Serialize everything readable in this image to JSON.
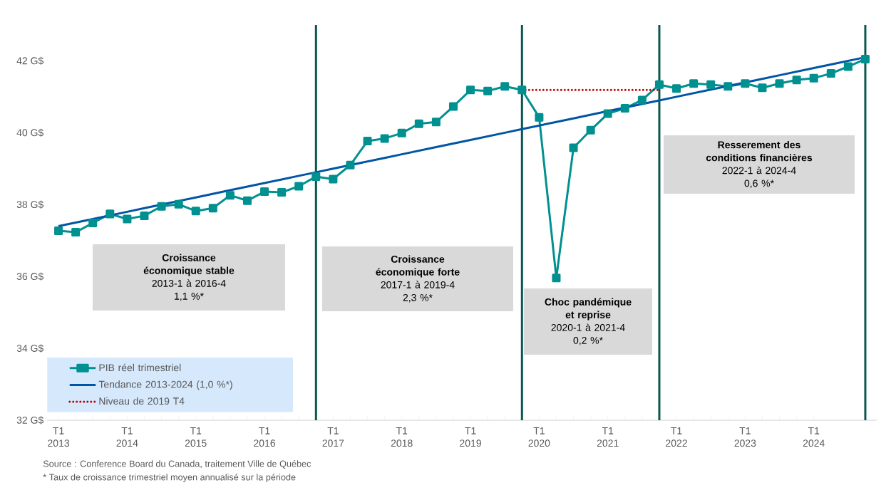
{
  "chart_data": {
    "type": "line",
    "x": [
      "2013-01",
      "2013-04",
      "2013-07",
      "2013-10",
      "2014-01",
      "2014-04",
      "2014-07",
      "2014-10",
      "2015-01",
      "2015-04",
      "2015-07",
      "2015-10",
      "2016-01",
      "2016-04",
      "2016-07",
      "2016-10",
      "2017-01",
      "2017-04",
      "2017-07",
      "2017-10",
      "2018-01",
      "2018-04",
      "2018-07",
      "2018-10",
      "2019-01",
      "2019-04",
      "2019-07",
      "2019-10",
      "2020-01",
      "2020-04",
      "2020-07",
      "2020-10",
      "2021-01",
      "2021-04",
      "2021-07",
      "2021-10",
      "2022-01",
      "2022-04",
      "2022-07",
      "2022-10",
      "2023-01",
      "2023-04",
      "2023-07",
      "2023-10",
      "2024-01",
      "2024-04",
      "2024-07",
      "2024-10"
    ],
    "series": [
      {
        "name": "PIB réel trimestriel",
        "color": "#009090",
        "marker": "square",
        "values": [
          37.27,
          37.23,
          37.49,
          37.74,
          37.6,
          37.69,
          37.95,
          38.01,
          37.82,
          37.9,
          38.26,
          38.11,
          38.36,
          38.34,
          38.51,
          38.78,
          38.71,
          39.1,
          39.77,
          39.84,
          39.99,
          40.25,
          40.3,
          40.73,
          41.19,
          41.16,
          41.29,
          41.19,
          40.43,
          35.96,
          39.58,
          40.07,
          40.53,
          40.68,
          40.91,
          41.34,
          41.23,
          41.37,
          41.34,
          41.29,
          41.37,
          41.25,
          41.37,
          41.47,
          41.52,
          41.65,
          41.84,
          42.05
        ]
      },
      {
        "name": "Tendance 2013-2024 (1,0 %*)",
        "color": "#0055a5",
        "values": [
          37.4,
          37.5,
          37.6,
          37.7,
          37.8,
          37.9,
          38.0,
          38.1,
          38.2,
          38.3,
          38.4,
          38.5,
          38.6,
          38.7,
          38.8,
          38.9,
          39.0,
          39.1,
          39.2,
          39.3,
          39.4,
          39.5,
          39.6,
          39.7,
          39.8,
          39.9,
          40.0,
          40.1,
          40.2,
          40.3,
          40.4,
          40.5,
          40.6,
          40.7,
          40.8,
          40.9,
          41.0,
          41.1,
          41.2,
          41.3,
          41.4,
          41.5,
          41.6,
          41.7,
          41.8,
          41.9,
          42.0,
          42.1
        ]
      },
      {
        "name": "Niveau de 2019 T4",
        "color": "#c00000",
        "line_style": "dotted",
        "values": [
          null,
          null,
          null,
          null,
          null,
          null,
          null,
          null,
          null,
          null,
          null,
          null,
          null,
          null,
          null,
          null,
          null,
          null,
          null,
          null,
          null,
          null,
          null,
          null,
          null,
          null,
          null,
          41.19,
          41.19,
          41.19,
          41.19,
          41.19,
          41.19,
          41.19,
          41.19,
          41.19,
          null,
          null,
          null,
          null,
          null,
          null,
          null,
          null,
          null,
          null,
          null,
          null
        ]
      }
    ],
    "xlim": [
      "2012-11",
      "2024-12"
    ],
    "xticks": [
      {
        "value": "2013-01",
        "label": "T1 2013"
      },
      {
        "value": "2014-01",
        "label": "T1 2014"
      },
      {
        "value": "2015-01",
        "label": "T1 2015"
      },
      {
        "value": "2016-01",
        "label": "T1 2016"
      },
      {
        "value": "2017-01",
        "label": "T1 2017"
      },
      {
        "value": "2018-01",
        "label": "T1 2018"
      },
      {
        "value": "2019-01",
        "label": "T1 2019"
      },
      {
        "value": "2020-01",
        "label": "T1 2020"
      },
      {
        "value": "2021-01",
        "label": "T1 2021"
      },
      {
        "value": "2022-01",
        "label": "T1 2022"
      },
      {
        "value": "2023-01",
        "label": "T1 2023"
      },
      {
        "value": "2024-01",
        "label": "T1 2024"
      }
    ],
    "ylim": [
      32,
      43
    ],
    "yticks": [
      {
        "value": 32,
        "label": "32 G$"
      },
      {
        "value": 34,
        "label": "34 G$"
      },
      {
        "value": 36,
        "label": "36 G$"
      },
      {
        "value": 38,
        "label": "38 G$"
      },
      {
        "value": 40,
        "label": "40 G$"
      },
      {
        "value": 42,
        "label": "42 G$"
      }
    ],
    "ref_lines": [
      {
        "axis": "x",
        "value": "2016-10",
        "color": "#0b5750"
      },
      {
        "axis": "x",
        "value": "2019-10",
        "color": "#0b5750"
      },
      {
        "axis": "x",
        "value": "2021-10",
        "color": "#0b5750"
      },
      {
        "axis": "x",
        "value": "2024-10",
        "color": "#0b5750"
      }
    ],
    "legend": "bottom left",
    "annotations": [
      "Croissance économique stable",
      "2013-1 à 2016-4",
      "1,1 %*",
      "Croissance économique forte",
      "2017-1 à 2019-4",
      "2,3 %*",
      "Choc pandémique et reprise",
      "2020-1 à 2021-4",
      "0,2 %*",
      "Resserement des conditions financières",
      "2022-1 à 2024-4",
      "0,6 %*",
      "Source : Conference Board du Canada, traitement Ville de Québec",
      "* Taux de croissance trimestriel moyen annualisé sur la période"
    ]
  }
}
